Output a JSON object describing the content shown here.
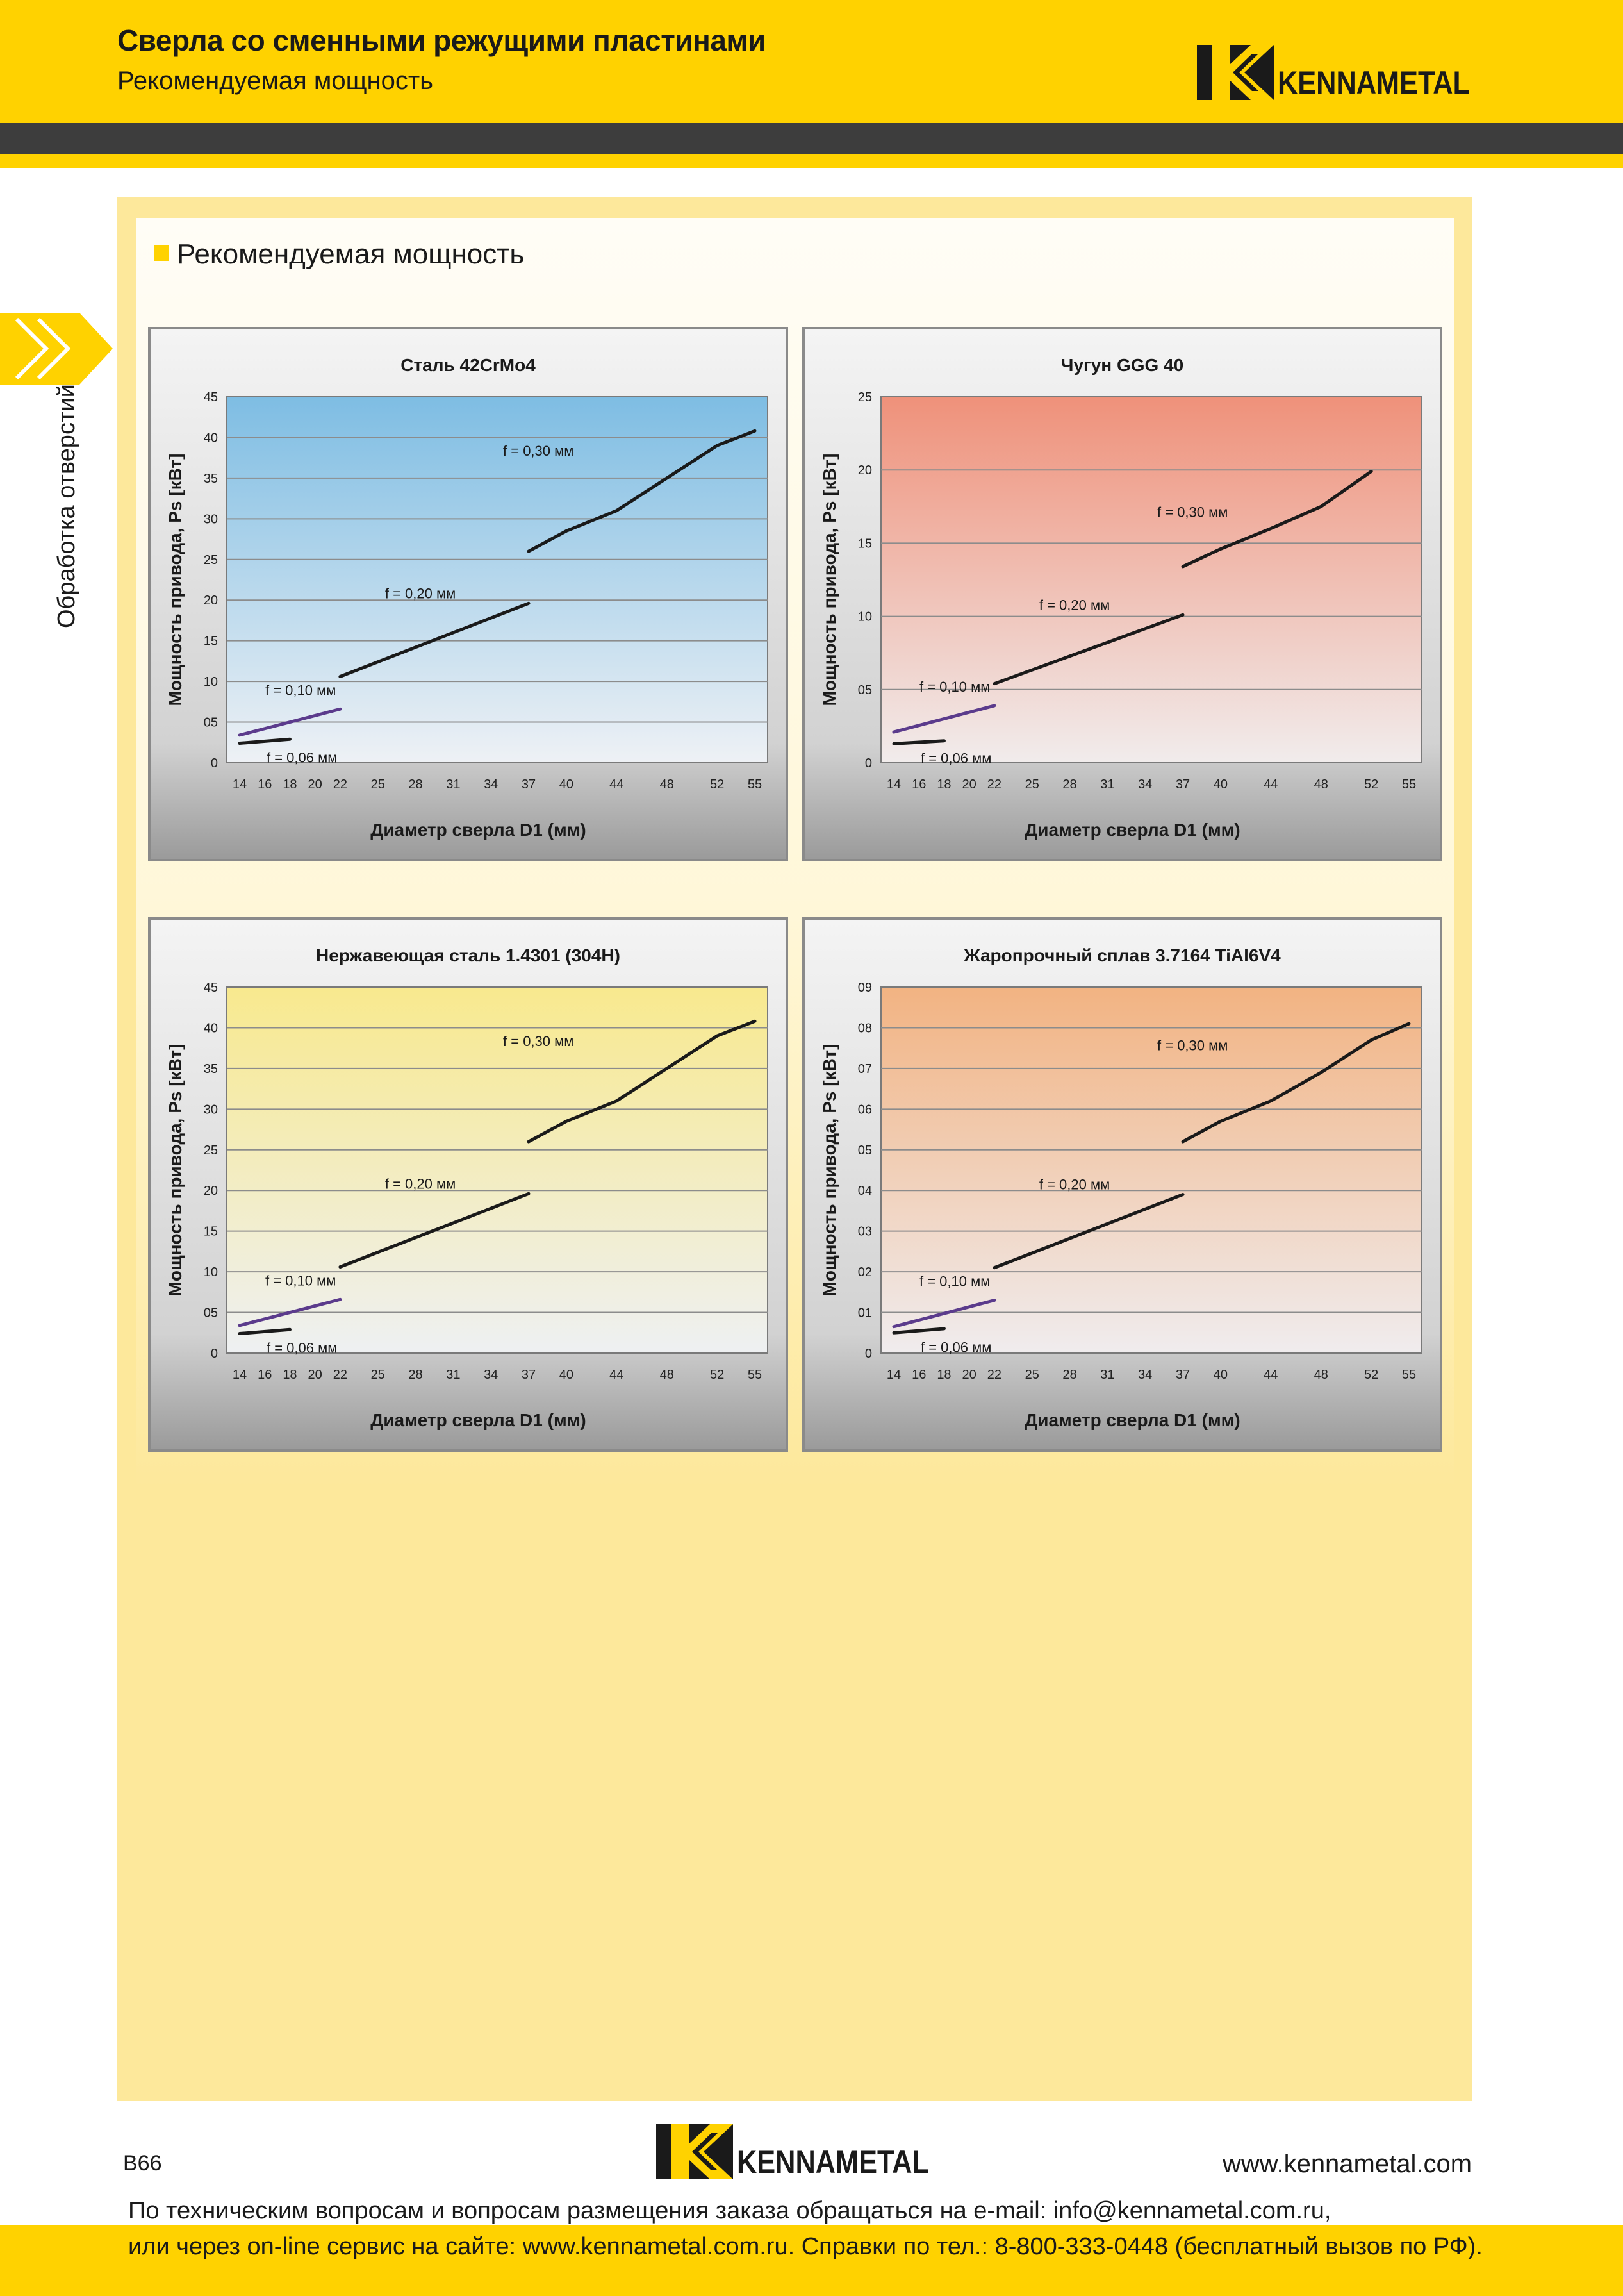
{
  "header": {
    "title": "Сверла со сменными режущими пластинами",
    "subtitle": "Рекомендуемая мощность",
    "logo_text": "KENNAMETAL"
  },
  "side_tab": {
    "label": "Обработка отверстий"
  },
  "section": {
    "title": "Рекомендуемая мощность"
  },
  "footer": {
    "page_number": "B66",
    "website": "www.kennametal.com",
    "logo_text": "KENNAMETAL",
    "contact_line1": "По техническим вопросам и вопросам размещения заказа обращаться на e-mail: info@kennametal.com.ru,",
    "contact_line2": "или через on-line сервис на сайте: www.kennametal.com.ru. Справки по тел.: 8-800-333-0448 (бесплатный вызов по РФ)."
  },
  "colors": {
    "brand_yellow": "#ffd200",
    "dark_band": "#3d3d3d",
    "line_black": "#1a1a1a",
    "line_purple": "#5b3b8c"
  },
  "chart_data": [
    {
      "type": "line",
      "title": "Сталь 42CrMo4",
      "xlabel": "Диаметр сверла D1 (мм)",
      "ylabel": "Мощность привода, Ps [кВт]",
      "categories": [
        "14",
        "16",
        "18",
        "20",
        "22",
        "25",
        "28",
        "31",
        "34",
        "37",
        "40",
        "44",
        "48",
        "52",
        "55"
      ],
      "yticks": [
        "0",
        "05",
        "10",
        "15",
        "20",
        "25",
        "30",
        "35",
        "40",
        "45"
      ],
      "ylim": [
        0,
        45
      ],
      "grid": true,
      "bg_top": "#7ebde3",
      "bg_bottom": "#eef1f5",
      "series": [
        {
          "name": "f = 0,06 мм",
          "color": "#1a1a1a",
          "x": [
            14,
            18
          ],
          "y": [
            2.4,
            2.9
          ]
        },
        {
          "name": "f = 0,10 мм",
          "color": "#5b3b8c",
          "x": [
            14,
            22
          ],
          "y": [
            3.4,
            6.6
          ]
        },
        {
          "name": "f = 0,20 мм",
          "color": "#1a1a1a",
          "x": [
            22,
            37
          ],
          "y": [
            10.6,
            19.6
          ]
        },
        {
          "name": "f = 0,30 мм",
          "color": "#1a1a1a",
          "x": [
            37,
            40,
            44,
            48,
            52,
            55
          ],
          "y": [
            26.0,
            28.5,
            31.0,
            35.0,
            39.0,
            40.8
          ]
        }
      ]
    },
    {
      "type": "line",
      "title": "Чугун GGG 40",
      "xlabel": "Диаметр сверла D1 (мм)",
      "ylabel": "Мощность привода, Ps [кВт]",
      "categories": [
        "14",
        "16",
        "18",
        "20",
        "22",
        "25",
        "28",
        "31",
        "34",
        "37",
        "40",
        "44",
        "48",
        "52",
        "55"
      ],
      "yticks": [
        "0",
        "05",
        "10",
        "15",
        "20",
        "25"
      ],
      "ylim": [
        0,
        25
      ],
      "grid": true,
      "bg_top": "#ef917a",
      "bg_bottom": "#f1ecec",
      "series": [
        {
          "name": "f = 0,06 мм",
          "color": "#1a1a1a",
          "x": [
            14,
            18
          ],
          "y": [
            1.3,
            1.5
          ]
        },
        {
          "name": "f = 0,10 мм",
          "color": "#5b3b8c",
          "x": [
            14,
            22
          ],
          "y": [
            2.1,
            3.9
          ]
        },
        {
          "name": "f = 0,20 мм",
          "color": "#1a1a1a",
          "x": [
            22,
            37
          ],
          "y": [
            5.4,
            10.1
          ]
        },
        {
          "name": "f = 0,30 мм",
          "color": "#1a1a1a",
          "x": [
            37,
            40,
            44,
            48,
            52
          ],
          "y": [
            13.4,
            14.6,
            16.0,
            17.5,
            19.9
          ]
        }
      ]
    },
    {
      "type": "line",
      "title": "Нержавеющая сталь 1.4301 (304H)",
      "xlabel": "Диаметр сверла D1 (мм)",
      "ylabel": "Мощность привода, Ps [кВт]",
      "categories": [
        "14",
        "16",
        "18",
        "20",
        "22",
        "25",
        "28",
        "31",
        "34",
        "37",
        "40",
        "44",
        "48",
        "52",
        "55"
      ],
      "yticks": [
        "0",
        "05",
        "10",
        "15",
        "20",
        "25",
        "30",
        "35",
        "40",
        "45"
      ],
      "ylim": [
        0,
        45
      ],
      "grid": true,
      "bg_top": "#f8e98e",
      "bg_bottom": "#eef0f2",
      "series": [
        {
          "name": "f = 0,06 мм",
          "color": "#1a1a1a",
          "x": [
            14,
            18
          ],
          "y": [
            2.4,
            2.9
          ]
        },
        {
          "name": "f = 0,10 мм",
          "color": "#5b3b8c",
          "x": [
            14,
            22
          ],
          "y": [
            3.4,
            6.6
          ]
        },
        {
          "name": "f = 0,20 мм",
          "color": "#1a1a1a",
          "x": [
            22,
            37
          ],
          "y": [
            10.6,
            19.6
          ]
        },
        {
          "name": "f = 0,30 мм",
          "color": "#1a1a1a",
          "x": [
            37,
            40,
            44,
            48,
            52,
            55
          ],
          "y": [
            26.0,
            28.5,
            31.0,
            35.0,
            39.0,
            40.8
          ]
        }
      ]
    },
    {
      "type": "line",
      "title": "Жаропрочный сплав 3.7164 TiAl6V4",
      "xlabel": "Диаметр сверла D1 (мм)",
      "ylabel": "Мощность привода, Ps [кВт]",
      "categories": [
        "14",
        "16",
        "18",
        "20",
        "22",
        "25",
        "28",
        "31",
        "34",
        "37",
        "40",
        "44",
        "48",
        "52",
        "55"
      ],
      "yticks": [
        "0",
        "01",
        "02",
        "03",
        "04",
        "05",
        "06",
        "07",
        "08",
        "09"
      ],
      "ylim": [
        0,
        9
      ],
      "grid": true,
      "bg_top": "#f2b382",
      "bg_bottom": "#f0ecee",
      "series": [
        {
          "name": "f = 0,06 мм",
          "color": "#1a1a1a",
          "x": [
            14,
            18
          ],
          "y": [
            0.5,
            0.6
          ]
        },
        {
          "name": "f = 0,10 мм",
          "color": "#5b3b8c",
          "x": [
            14,
            22
          ],
          "y": [
            0.65,
            1.3
          ]
        },
        {
          "name": "f = 0,20 мм",
          "color": "#1a1a1a",
          "x": [
            22,
            37
          ],
          "y": [
            2.1,
            3.9
          ]
        },
        {
          "name": "f = 0,30 мм",
          "color": "#1a1a1a",
          "x": [
            37,
            40,
            44,
            48,
            52,
            55
          ],
          "y": [
            5.2,
            5.7,
            6.2,
            6.9,
            7.7,
            8.1
          ]
        }
      ]
    }
  ]
}
